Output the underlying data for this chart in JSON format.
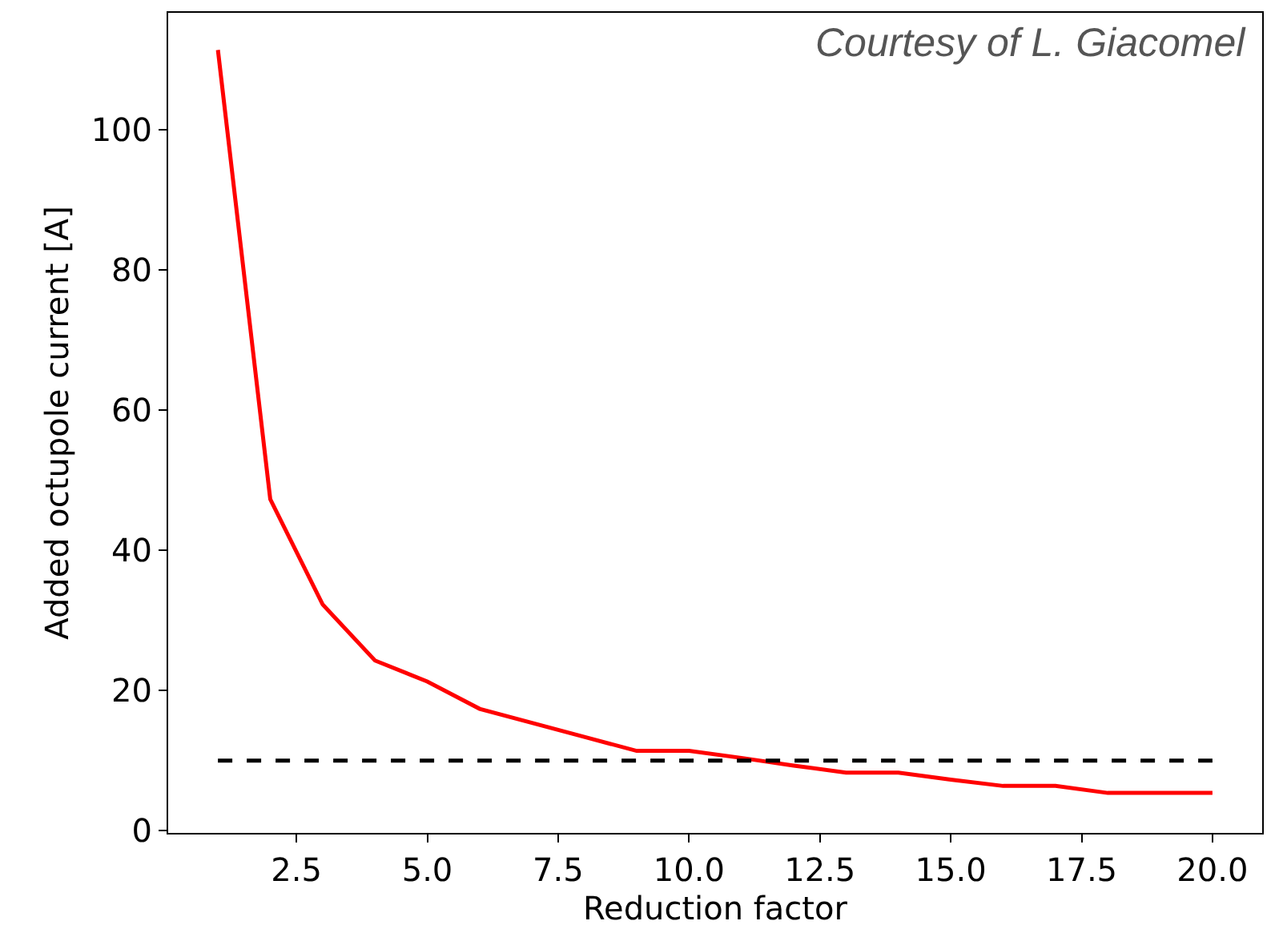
{
  "chart_data": {
    "type": "line",
    "xlabel": "Reduction factor",
    "ylabel": "Added octupole current [A]",
    "x": [
      1,
      2,
      3,
      4,
      5,
      6,
      7,
      8,
      9,
      10,
      11,
      12,
      13,
      14,
      15,
      16,
      17,
      18,
      19,
      20
    ],
    "series": [
      {
        "color": "#ff0000",
        "values": [
          111.4,
          47.3,
          32.3,
          24.3,
          21.3,
          17.4,
          15.4,
          13.4,
          11.4,
          11.4,
          10.4,
          9.3,
          8.3,
          8.3,
          7.3,
          6.4,
          6.4,
          5.4,
          5.4,
          5.4
        ]
      },
      {
        "color": "#000000",
        "line_style": "dashed",
        "values": [
          10,
          10,
          10,
          10,
          10,
          10,
          10,
          10,
          10,
          10,
          10,
          10,
          10,
          10,
          10,
          10,
          10,
          10,
          10,
          10
        ]
      }
    ],
    "xlim": [
      0.05,
      20.95
    ],
    "ylim": [
      -0.3,
      116.7
    ],
    "xticks": [
      {
        "value": 2.5,
        "label": "2.5"
      },
      {
        "value": 5,
        "label": "5.0"
      },
      {
        "value": 7.5,
        "label": "7.5"
      },
      {
        "value": 10,
        "label": "10.0"
      },
      {
        "value": 12.5,
        "label": "12.5"
      },
      {
        "value": 15,
        "label": "15.0"
      },
      {
        "value": 17.5,
        "label": "17.5"
      },
      {
        "value": 20,
        "label": "20.0"
      }
    ],
    "yticks": [
      0,
      20,
      40,
      60,
      80,
      100
    ],
    "marker": "none",
    "annotations": [
      "Courtesy of L. Giacomel"
    ]
  }
}
